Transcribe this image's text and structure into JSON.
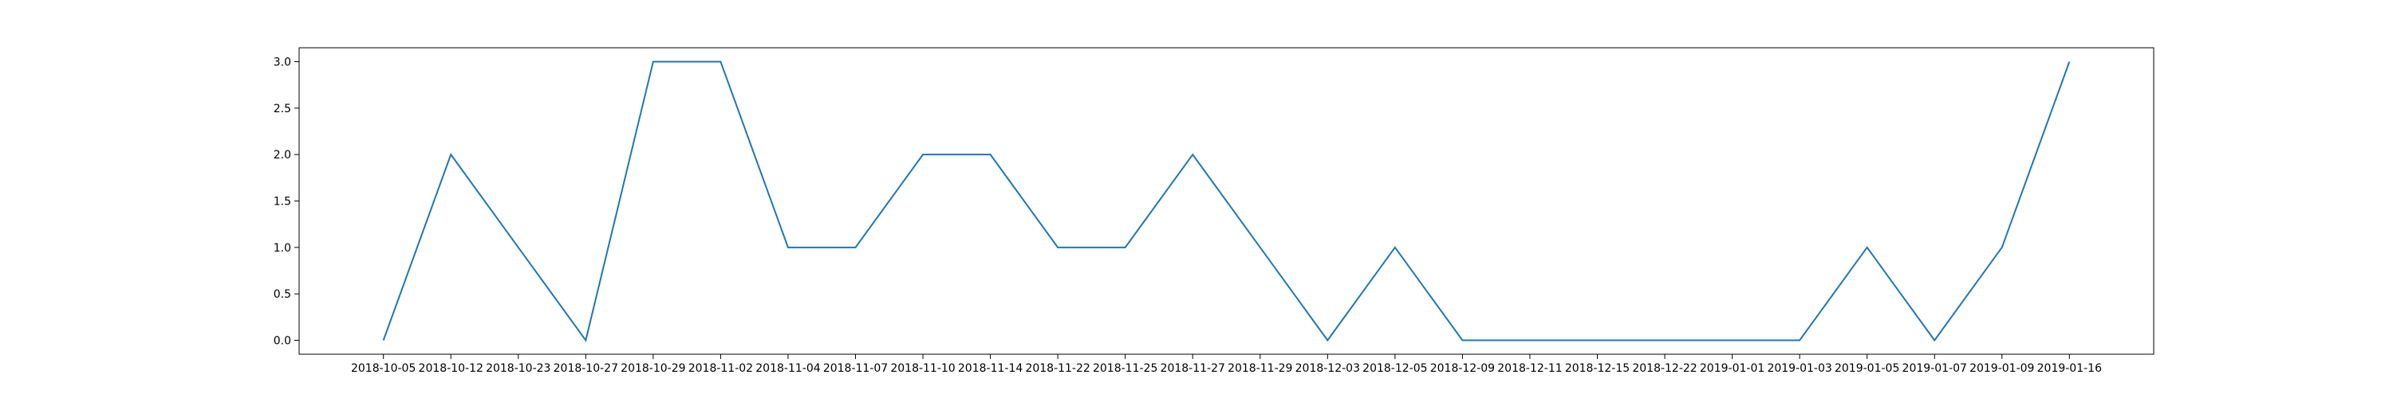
{
  "chart_data": {
    "type": "line",
    "title": "",
    "xlabel": "",
    "ylabel": "",
    "x": [
      "2018-10-05",
      "2018-10-12",
      "2018-10-23",
      "2018-10-27",
      "2018-10-29",
      "2018-11-02",
      "2018-11-04",
      "2018-11-07",
      "2018-11-10",
      "2018-11-14",
      "2018-11-22",
      "2018-11-25",
      "2018-11-27",
      "2018-11-29",
      "2018-12-03",
      "2018-12-05",
      "2018-12-09",
      "2018-12-11",
      "2018-12-15",
      "2018-12-22",
      "2019-01-01",
      "2019-01-03",
      "2019-01-05",
      "2019-01-07",
      "2019-01-09",
      "2019-01-16"
    ],
    "series": [
      {
        "values": [
          0,
          2,
          1,
          0,
          3,
          3,
          1,
          1,
          2,
          2,
          1,
          1,
          2,
          1,
          0,
          1,
          0,
          0,
          0,
          0,
          0,
          0,
          1,
          0,
          1,
          3
        ]
      }
    ],
    "ylim": [
      -0.15,
      3.15
    ],
    "yticks": [
      "0.0",
      "0.5",
      "1.0",
      "1.5",
      "2.0",
      "2.5",
      "3.0"
    ],
    "grid": false,
    "line_color": "#1f77b4"
  }
}
